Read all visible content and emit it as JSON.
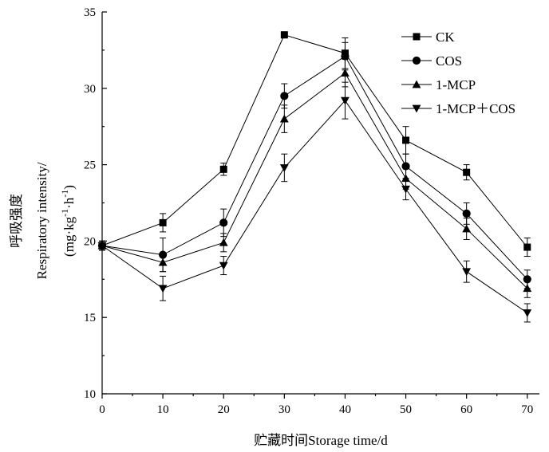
{
  "chart_data": {
    "type": "line",
    "title": "",
    "xlabel": "贮藏时间Storage time/d",
    "ylabel_lines": [
      "呼吸强度",
      "Respiratory intensity/",
      "(mg·kg",
      "-1",
      "·h",
      "-1",
      ")"
    ],
    "xlim": [
      0,
      72
    ],
    "ylim": [
      10,
      35
    ],
    "xticks": [
      0,
      10,
      20,
      30,
      40,
      50,
      60,
      70
    ],
    "yticks": [
      10,
      15,
      20,
      25,
      30,
      35
    ],
    "x": [
      0,
      10,
      20,
      30,
      40,
      50,
      60,
      70
    ],
    "grid": false,
    "legend_position": "top-right",
    "series": [
      {
        "name": "CK",
        "marker": "square",
        "values": [
          19.7,
          21.2,
          24.7,
          33.5,
          32.3,
          26.6,
          24.5,
          19.6
        ],
        "errors": [
          0.3,
          0.6,
          0.4,
          0.2,
          1.0,
          0.9,
          0.5,
          0.6
        ]
      },
      {
        "name": "COS",
        "marker": "circle",
        "values": [
          19.7,
          19.1,
          21.2,
          29.5,
          32.1,
          24.9,
          21.8,
          17.5
        ],
        "errors": [
          0.3,
          1.1,
          0.9,
          0.8,
          0.9,
          0.8,
          0.7,
          0.6
        ]
      },
      {
        "name": "1-MCP",
        "marker": "triangle-up",
        "values": [
          19.7,
          18.6,
          19.9,
          28.0,
          31.0,
          24.1,
          20.8,
          16.9
        ],
        "errors": [
          0.3,
          0.6,
          0.6,
          0.9,
          0.9,
          0.7,
          0.7,
          0.6
        ]
      },
      {
        "name": "1-MCP＋COS",
        "marker": "triangle-down",
        "values": [
          19.7,
          16.9,
          18.4,
          24.8,
          29.2,
          23.4,
          18.0,
          15.3
        ],
        "errors": [
          0.3,
          0.8,
          0.6,
          0.9,
          1.2,
          0.7,
          0.7,
          0.6
        ]
      }
    ]
  }
}
